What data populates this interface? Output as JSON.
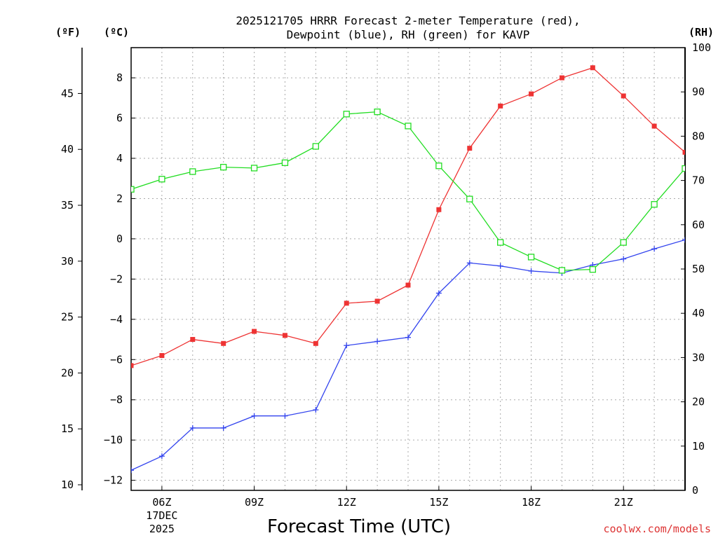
{
  "title_line1": "2025121705 HRRR Forecast 2-meter Temperature (red),",
  "title_line2": "Dewpoint (blue), RH (green) for KAVP",
  "credit": "coolwx.com/models",
  "chart_data": {
    "type": "line",
    "xlabel": "Forecast Time (UTC)",
    "x_hours": [
      5,
      6,
      7,
      8,
      9,
      10,
      11,
      12,
      13,
      14,
      15,
      16,
      17,
      18,
      19,
      20,
      21,
      22,
      23
    ],
    "x_range": [
      5,
      23
    ],
    "x_ticks": [
      {
        "hour": 6,
        "label": "06Z",
        "sub1": "17DEC",
        "sub2": "2025"
      },
      {
        "hour": 9,
        "label": "09Z"
      },
      {
        "hour": 12,
        "label": "12Z"
      },
      {
        "hour": 15,
        "label": "15Z"
      },
      {
        "hour": 18,
        "label": "18Z"
      },
      {
        "hour": 21,
        "label": "21Z"
      }
    ],
    "y_celsius": {
      "unit_label": "(ºC)",
      "range": [
        -12.5,
        9.5
      ],
      "ticks": [
        {
          "value": 8,
          "label": "8"
        },
        {
          "value": 6,
          "label": "6"
        },
        {
          "value": 4,
          "label": "4"
        },
        {
          "value": 2,
          "label": "2"
        },
        {
          "value": 0,
          "label": "0"
        },
        {
          "value": -2,
          "label": "−2"
        },
        {
          "value": -4,
          "label": "−4"
        },
        {
          "value": -6,
          "label": "−6"
        },
        {
          "value": -8,
          "label": "−8"
        },
        {
          "value": -10,
          "label": "−10"
        },
        {
          "value": -12,
          "label": "−12"
        }
      ]
    },
    "y_fahrenheit": {
      "unit_label": "(ºF)",
      "ticks": [
        {
          "value": 45,
          "label": "45"
        },
        {
          "value": 40,
          "label": "40"
        },
        {
          "value": 35,
          "label": "35"
        },
        {
          "value": 30,
          "label": "30"
        },
        {
          "value": 25,
          "label": "25"
        },
        {
          "value": 20,
          "label": "20"
        },
        {
          "value": 15,
          "label": "15"
        },
        {
          "value": 10,
          "label": "10"
        }
      ]
    },
    "y_rh": {
      "unit_label": "(RH)",
      "range": [
        0,
        100
      ],
      "ticks": [
        {
          "value": 100,
          "label": "100"
        },
        {
          "value": 90,
          "label": "90"
        },
        {
          "value": 80,
          "label": "80"
        },
        {
          "value": 70,
          "label": "70"
        },
        {
          "value": 60,
          "label": "60"
        },
        {
          "value": 50,
          "label": "50"
        },
        {
          "value": 40,
          "label": "40"
        },
        {
          "value": 30,
          "label": "30"
        },
        {
          "value": 20,
          "label": "20"
        },
        {
          "value": 10,
          "label": "10"
        },
        {
          "value": 0,
          "label": "0"
        }
      ]
    },
    "series": [
      {
        "name": "2-meter Temperature",
        "axis": "celsius",
        "color": "#ee3333",
        "marker": "filled-square",
        "values": [
          -6.3,
          -5.8,
          -5.0,
          -5.2,
          -4.6,
          -4.8,
          -5.2,
          -3.2,
          -3.1,
          -2.3,
          1.45,
          4.5,
          6.6,
          7.2,
          8.0,
          8.5,
          7.1,
          5.6,
          4.3
        ]
      },
      {
        "name": "Dewpoint",
        "axis": "celsius",
        "color": "#3344ee",
        "marker": "plus",
        "values": [
          -11.5,
          -10.8,
          -9.4,
          -9.4,
          -8.8,
          -8.8,
          -8.5,
          -5.3,
          -5.1,
          -4.9,
          -2.7,
          -1.2,
          -1.35,
          -1.6,
          -1.7,
          -1.3,
          -1.0,
          -0.5,
          -0.05
        ]
      },
      {
        "name": "RH",
        "axis": "rh",
        "color": "#22dd22",
        "marker": "open-square",
        "values": [
          68.0,
          70.3,
          72.0,
          73.0,
          72.8,
          74.0,
          77.7,
          85.0,
          85.5,
          82.3,
          73.3,
          65.8,
          56.0,
          52.7,
          49.7,
          49.9,
          56.0,
          64.6,
          72.7
        ]
      }
    ]
  }
}
